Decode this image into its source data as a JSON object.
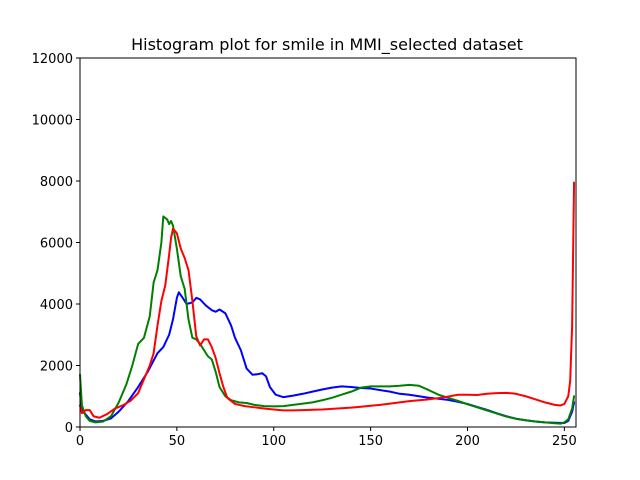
{
  "chart_data": {
    "type": "line",
    "title": "Histogram plot for smile in MMI_selected dataset",
    "xlabel": "",
    "ylabel": "",
    "xlim": [
      0,
      256
    ],
    "ylim": [
      0,
      12000
    ],
    "x_ticks": [
      0,
      50,
      100,
      150,
      200,
      250
    ],
    "y_ticks": [
      0,
      2000,
      4000,
      6000,
      8000,
      10000,
      12000
    ],
    "grid": false,
    "series": [
      {
        "color": "#0000ff",
        "points": [
          [
            0,
            1100
          ],
          [
            1,
            550
          ],
          [
            3,
            400
          ],
          [
            5,
            250
          ],
          [
            8,
            180
          ],
          [
            12,
            200
          ],
          [
            16,
            280
          ],
          [
            20,
            500
          ],
          [
            25,
            850
          ],
          [
            30,
            1300
          ],
          [
            35,
            1800
          ],
          [
            40,
            2400
          ],
          [
            43,
            2600
          ],
          [
            46,
            3000
          ],
          [
            48,
            3500
          ],
          [
            50,
            4200
          ],
          [
            51,
            4380
          ],
          [
            53,
            4200
          ],
          [
            55,
            4000
          ],
          [
            58,
            4050
          ],
          [
            60,
            4200
          ],
          [
            62,
            4150
          ],
          [
            65,
            3950
          ],
          [
            68,
            3800
          ],
          [
            70,
            3750
          ],
          [
            72,
            3820
          ],
          [
            75,
            3700
          ],
          [
            78,
            3300
          ],
          [
            80,
            2900
          ],
          [
            83,
            2500
          ],
          [
            86,
            1900
          ],
          [
            89,
            1700
          ],
          [
            92,
            1720
          ],
          [
            94,
            1750
          ],
          [
            96,
            1650
          ],
          [
            98,
            1300
          ],
          [
            101,
            1050
          ],
          [
            105,
            970
          ],
          [
            110,
            1020
          ],
          [
            115,
            1080
          ],
          [
            120,
            1150
          ],
          [
            125,
            1220
          ],
          [
            130,
            1280
          ],
          [
            135,
            1320
          ],
          [
            140,
            1300
          ],
          [
            145,
            1270
          ],
          [
            150,
            1250
          ],
          [
            155,
            1200
          ],
          [
            160,
            1150
          ],
          [
            165,
            1080
          ],
          [
            170,
            1050
          ],
          [
            175,
            1000
          ],
          [
            180,
            950
          ],
          [
            185,
            920
          ],
          [
            190,
            880
          ],
          [
            195,
            820
          ],
          [
            200,
            750
          ],
          [
            205,
            650
          ],
          [
            210,
            560
          ],
          [
            215,
            450
          ],
          [
            220,
            350
          ],
          [
            225,
            270
          ],
          [
            230,
            220
          ],
          [
            235,
            180
          ],
          [
            240,
            150
          ],
          [
            245,
            140
          ],
          [
            250,
            130
          ],
          [
            252,
            200
          ],
          [
            254,
            500
          ],
          [
            255,
            800
          ]
        ]
      },
      {
        "color": "#008000",
        "points": [
          [
            0,
            1700
          ],
          [
            1,
            700
          ],
          [
            3,
            350
          ],
          [
            5,
            200
          ],
          [
            8,
            150
          ],
          [
            12,
            180
          ],
          [
            16,
            350
          ],
          [
            20,
            800
          ],
          [
            24,
            1400
          ],
          [
            27,
            2000
          ],
          [
            30,
            2700
          ],
          [
            33,
            2900
          ],
          [
            36,
            3600
          ],
          [
            38,
            4700
          ],
          [
            40,
            5100
          ],
          [
            42,
            6000
          ],
          [
            43,
            6850
          ],
          [
            45,
            6750
          ],
          [
            46,
            6600
          ],
          [
            47,
            6700
          ],
          [
            48,
            6550
          ],
          [
            50,
            5800
          ],
          [
            52,
            4900
          ],
          [
            54,
            4500
          ],
          [
            56,
            3500
          ],
          [
            58,
            2900
          ],
          [
            60,
            2850
          ],
          [
            62,
            2700
          ],
          [
            64,
            2500
          ],
          [
            66,
            2300
          ],
          [
            68,
            2200
          ],
          [
            70,
            1800
          ],
          [
            72,
            1300
          ],
          [
            75,
            1000
          ],
          [
            78,
            870
          ],
          [
            82,
            800
          ],
          [
            86,
            780
          ],
          [
            90,
            720
          ],
          [
            95,
            680
          ],
          [
            100,
            670
          ],
          [
            105,
            680
          ],
          [
            110,
            720
          ],
          [
            115,
            760
          ],
          [
            120,
            800
          ],
          [
            125,
            870
          ],
          [
            130,
            950
          ],
          [
            135,
            1050
          ],
          [
            140,
            1150
          ],
          [
            145,
            1280
          ],
          [
            150,
            1320
          ],
          [
            155,
            1320
          ],
          [
            160,
            1320
          ],
          [
            165,
            1340
          ],
          [
            170,
            1370
          ],
          [
            175,
            1340
          ],
          [
            180,
            1200
          ],
          [
            185,
            1050
          ],
          [
            190,
            950
          ],
          [
            195,
            850
          ],
          [
            200,
            740
          ],
          [
            205,
            640
          ],
          [
            210,
            540
          ],
          [
            215,
            440
          ],
          [
            220,
            340
          ],
          [
            225,
            270
          ],
          [
            230,
            220
          ],
          [
            235,
            180
          ],
          [
            240,
            150
          ],
          [
            245,
            120
          ],
          [
            248,
            110
          ],
          [
            250,
            150
          ],
          [
            252,
            250
          ],
          [
            254,
            600
          ],
          [
            255,
            1000
          ]
        ]
      },
      {
        "color": "#ff0000",
        "points": [
          [
            0,
            700
          ],
          [
            1,
            450
          ],
          [
            3,
            550
          ],
          [
            5,
            550
          ],
          [
            7,
            350
          ],
          [
            10,
            300
          ],
          [
            14,
            420
          ],
          [
            18,
            600
          ],
          [
            22,
            700
          ],
          [
            26,
            850
          ],
          [
            30,
            1100
          ],
          [
            33,
            1550
          ],
          [
            36,
            2000
          ],
          [
            38,
            2400
          ],
          [
            40,
            3300
          ],
          [
            42,
            4100
          ],
          [
            44,
            4600
          ],
          [
            46,
            5600
          ],
          [
            47,
            6150
          ],
          [
            48,
            6450
          ],
          [
            50,
            6300
          ],
          [
            52,
            5800
          ],
          [
            54,
            5500
          ],
          [
            56,
            5100
          ],
          [
            58,
            4100
          ],
          [
            60,
            2950
          ],
          [
            62,
            2650
          ],
          [
            64,
            2850
          ],
          [
            66,
            2850
          ],
          [
            68,
            2600
          ],
          [
            70,
            2250
          ],
          [
            72,
            1750
          ],
          [
            74,
            1300
          ],
          [
            76,
            950
          ],
          [
            80,
            750
          ],
          [
            85,
            680
          ],
          [
            90,
            640
          ],
          [
            95,
            600
          ],
          [
            100,
            570
          ],
          [
            105,
            540
          ],
          [
            110,
            540
          ],
          [
            115,
            550
          ],
          [
            120,
            560
          ],
          [
            125,
            570
          ],
          [
            130,
            590
          ],
          [
            135,
            610
          ],
          [
            140,
            630
          ],
          [
            145,
            660
          ],
          [
            150,
            690
          ],
          [
            155,
            720
          ],
          [
            160,
            760
          ],
          [
            165,
            800
          ],
          [
            170,
            840
          ],
          [
            175,
            870
          ],
          [
            180,
            900
          ],
          [
            185,
            940
          ],
          [
            190,
            990
          ],
          [
            195,
            1050
          ],
          [
            200,
            1050
          ],
          [
            205,
            1040
          ],
          [
            210,
            1080
          ],
          [
            215,
            1100
          ],
          [
            220,
            1110
          ],
          [
            225,
            1080
          ],
          [
            230,
            1000
          ],
          [
            235,
            900
          ],
          [
            240,
            800
          ],
          [
            245,
            720
          ],
          [
            248,
            700
          ],
          [
            250,
            750
          ],
          [
            252,
            1000
          ],
          [
            253,
            1500
          ],
          [
            254,
            3300
          ],
          [
            255,
            7950
          ]
        ]
      }
    ]
  }
}
